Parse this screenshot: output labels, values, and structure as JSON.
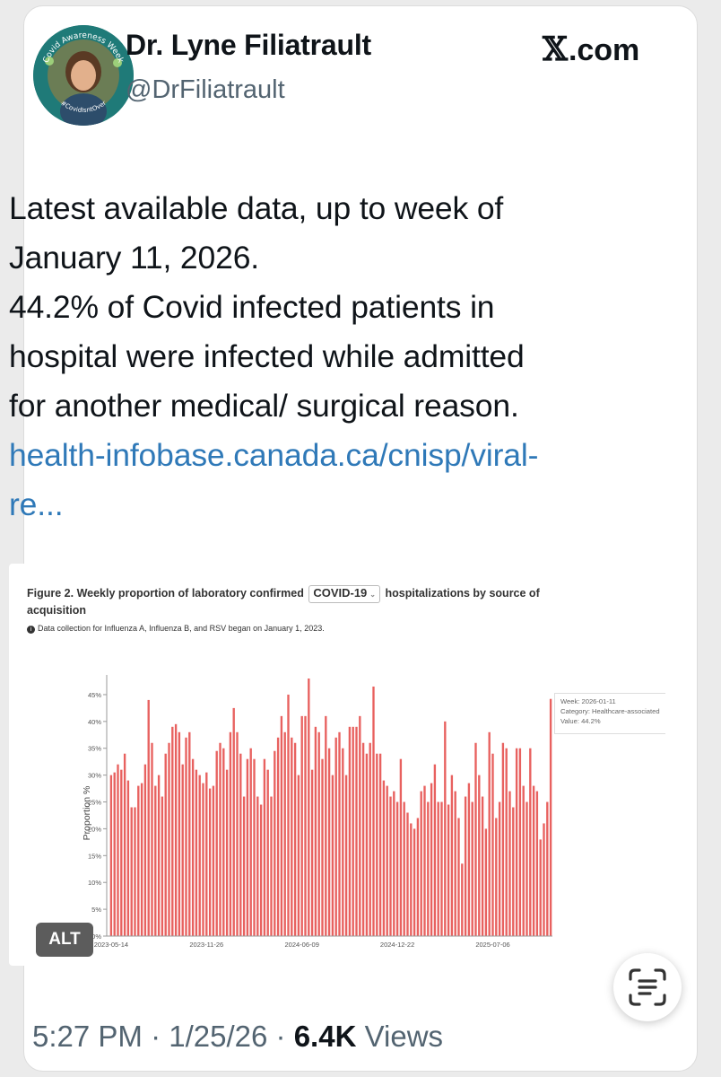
{
  "author": {
    "display_name": "Dr. Lyne Filiatrault",
    "handle": "@DrFiliatrault",
    "avatar_badge_top": "Covid Awareness Week",
    "avatar_badge_bottom": "#CovidIsntOver"
  },
  "brand": {
    "x_glyph": "𝕏",
    "domain": ".com"
  },
  "tweet": {
    "lines": [
      "Latest available data, up to week of",
      "January 11, 2026.",
      "44.2% of Covid infected patients in",
      "hospital were infected while admitted",
      "for another medical/ surgical reason."
    ],
    "link_line1": "health-infobase.canada.ca/cnisp/viral-",
    "link_line2": "re..."
  },
  "media": {
    "alt_label": "ALT",
    "figure_title_pre": "Figure 2. Weekly proportion of laboratory confirmed",
    "figure_dropdown": "COVID-19",
    "figure_title_post": "hospitalizations by source of",
    "figure_title_line2": "acquisition",
    "figure_note": "Data collection for Influenza A, Influenza B, and RSV began on January 1, 2023.",
    "tooltip": {
      "week": "Week: 2026-01-11",
      "category": "Category: Healthcare-associated",
      "value": "Value: 44.2%"
    }
  },
  "chart_data": {
    "type": "bar",
    "ylabel": "Proportion %",
    "ylim": [
      0,
      48
    ],
    "yticks": [
      "0%",
      "5%",
      "10%",
      "15%",
      "20%",
      "25%",
      "30%",
      "35%",
      "40%",
      "45%"
    ],
    "xtick_labels": [
      "2023-05-14",
      "2023-11-26",
      "2024-06-09",
      "2024-12-22",
      "2025-07-06"
    ],
    "bar_color": "#e8615f",
    "values": [
      30,
      30.5,
      32,
      31,
      34,
      29,
      24,
      24,
      28,
      28.5,
      32,
      44,
      36,
      28,
      30,
      26,
      34,
      36,
      39,
      39.5,
      38,
      32,
      37,
      38,
      33,
      31,
      30,
      28.5,
      30.5,
      27.5,
      28,
      34.5,
      36,
      35,
      31,
      38,
      42.5,
      38,
      34,
      26,
      33,
      35,
      33,
      26,
      24.5,
      33,
      31,
      26,
      34.5,
      37,
      41,
      38,
      45,
      37,
      36,
      30,
      41,
      41,
      48,
      31,
      39,
      38,
      33,
      41,
      35,
      30,
      37,
      38,
      35,
      30,
      39,
      39,
      39,
      41,
      36,
      34,
      36,
      46.5,
      34,
      34,
      29,
      28,
      26,
      27,
      25,
      33,
      25,
      23,
      21,
      20,
      22,
      27,
      28,
      25,
      28.5,
      32,
      25,
      25,
      40,
      24.5,
      30,
      27,
      22,
      13.5,
      26,
      28.5,
      25,
      36,
      30,
      26,
      20,
      38,
      34,
      22,
      25,
      36,
      35,
      27,
      24,
      35,
      35,
      28,
      25,
      35,
      28,
      27,
      18,
      21,
      25,
      44.2
    ],
    "series": [
      {
        "name": "Healthcare-associated"
      }
    ]
  },
  "footer": {
    "time": "5:27 PM",
    "date": "1/25/26",
    "views_count": "6.4K",
    "views_label": "Views",
    "separator": "·"
  }
}
